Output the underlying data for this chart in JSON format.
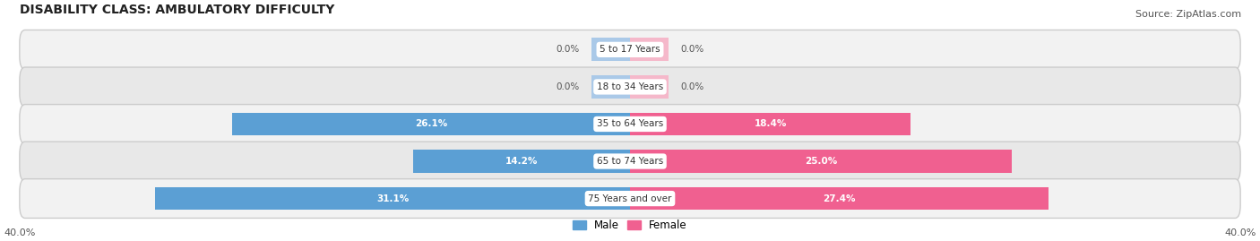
{
  "title": "DISABILITY CLASS: AMBULATORY DIFFICULTY",
  "source": "Source: ZipAtlas.com",
  "categories": [
    "5 to 17 Years",
    "18 to 34 Years",
    "35 to 64 Years",
    "65 to 74 Years",
    "75 Years and over"
  ],
  "male_values": [
    0.0,
    0.0,
    26.1,
    14.2,
    31.1
  ],
  "female_values": [
    0.0,
    0.0,
    18.4,
    25.0,
    27.4
  ],
  "x_max": 40.0,
  "male_color_light": "#aac9e8",
  "male_color_dark": "#5b9fd4",
  "female_color_light": "#f5b8ca",
  "female_color_dark": "#f06090",
  "row_bg_even": "#f2f2f2",
  "row_bg_odd": "#e8e8e8",
  "title_fontsize": 10,
  "source_fontsize": 8,
  "bar_height": 0.62,
  "figsize": [
    14.06,
    2.69
  ],
  "dpi": 100,
  "small_bar_width": 2.5
}
